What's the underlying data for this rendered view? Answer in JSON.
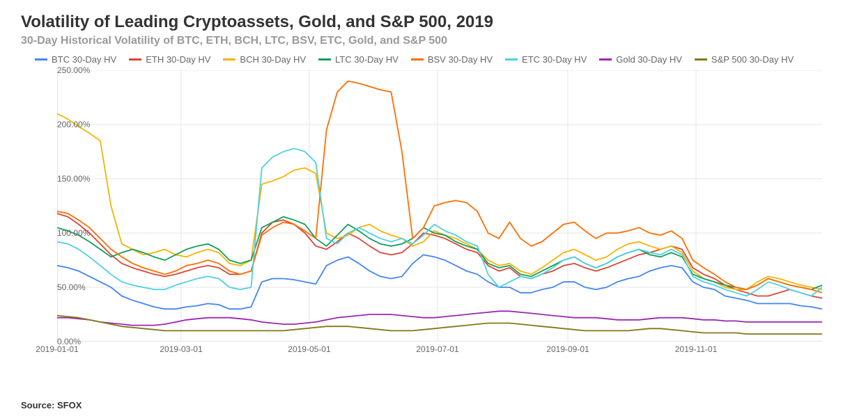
{
  "title": "Volatility of Leading Cryptoassets, Gold, and S&P 500, 2019",
  "subtitle": "30-Day Historical Volatility of BTC, ETH, BCH, LTC, BSV, ETC, Gold, and S&P 500",
  "source": "Source: SFOX",
  "chart": {
    "type": "line",
    "background_color": "#ffffff",
    "grid_color": "#e6e6e6",
    "axis_color": "#666666",
    "font_family": "Arial",
    "title_fontsize": 24,
    "subtitle_fontsize": 16,
    "label_fontsize": 12,
    "legend_fontsize": 13,
    "line_width": 1.8,
    "x_range": [
      "2019-01-01",
      "2019-12-31"
    ],
    "y_range": [
      0,
      250
    ],
    "y_tick_step": 50,
    "y_tick_format": "0.00%",
    "y_ticks": [
      "0.00%",
      "50.00%",
      "100.00%",
      "150.00%",
      "200.00%",
      "250.00%"
    ],
    "x_ticks": [
      "2019-01-01",
      "2019-03-01",
      "2019-05-01",
      "2019-07-01",
      "2019-09-01",
      "2019-11-01"
    ],
    "legend_position": "top",
    "series": [
      {
        "name": "BTC 30-Day HV",
        "color": "#4285f4",
        "values": [
          70,
          68,
          65,
          60,
          55,
          50,
          42,
          38,
          35,
          32,
          30,
          30,
          32,
          33,
          35,
          34,
          30,
          30,
          32,
          55,
          58,
          58,
          57,
          55,
          53,
          70,
          75,
          78,
          72,
          65,
          60,
          58,
          60,
          72,
          80,
          78,
          75,
          70,
          65,
          62,
          55,
          50,
          50,
          45,
          45,
          48,
          50,
          55,
          55,
          50,
          48,
          50,
          55,
          58,
          60,
          65,
          68,
          70,
          68,
          55,
          50,
          48,
          42,
          40,
          38,
          35,
          35,
          35,
          35,
          33,
          32,
          30
        ]
      },
      {
        "name": "ETH 30-Day HV",
        "color": "#db4437",
        "values": [
          118,
          115,
          108,
          100,
          90,
          80,
          72,
          68,
          65,
          62,
          60,
          62,
          65,
          68,
          70,
          68,
          62,
          62,
          65,
          100,
          110,
          112,
          108,
          100,
          88,
          85,
          92,
          100,
          95,
          88,
          82,
          80,
          82,
          90,
          100,
          98,
          95,
          90,
          85,
          82,
          70,
          65,
          68,
          60,
          58,
          62,
          65,
          70,
          72,
          68,
          65,
          68,
          72,
          76,
          80,
          82,
          85,
          88,
          85,
          68,
          62,
          58,
          52,
          48,
          45,
          42,
          42,
          45,
          48,
          45,
          42,
          40
        ]
      },
      {
        "name": "BCH 30-Day HV",
        "color": "#f4b400",
        "values": [
          210,
          205,
          198,
          192,
          185,
          125,
          90,
          85,
          80,
          82,
          85,
          80,
          78,
          82,
          85,
          82,
          72,
          70,
          75,
          145,
          148,
          152,
          158,
          160,
          155,
          100,
          95,
          98,
          105,
          108,
          102,
          98,
          95,
          88,
          92,
          102,
          98,
          95,
          90,
          85,
          75,
          70,
          72,
          65,
          62,
          68,
          75,
          82,
          85,
          80,
          75,
          78,
          85,
          90,
          92,
          88,
          85,
          88,
          82,
          65,
          58,
          55,
          50,
          48,
          48,
          55,
          60,
          58,
          55,
          52,
          50,
          48
        ]
      },
      {
        "name": "LTC 30-Day HV",
        "color": "#0f9d58",
        "values": [
          105,
          102,
          98,
          92,
          85,
          78,
          82,
          85,
          82,
          78,
          75,
          80,
          85,
          88,
          90,
          85,
          75,
          72,
          75,
          105,
          110,
          115,
          112,
          108,
          95,
          88,
          98,
          108,
          102,
          95,
          90,
          88,
          90,
          95,
          105,
          100,
          98,
          92,
          88,
          85,
          72,
          68,
          70,
          62,
          60,
          65,
          70,
          75,
          78,
          72,
          68,
          72,
          78,
          82,
          85,
          80,
          78,
          82,
          78,
          62,
          58,
          55,
          52,
          50,
          48,
          52,
          58,
          55,
          52,
          50,
          48,
          52
        ]
      },
      {
        "name": "BSV 30-Day HV",
        "color": "#ff6d00",
        "values": [
          120,
          118,
          112,
          105,
          95,
          85,
          78,
          72,
          68,
          65,
          62,
          65,
          70,
          72,
          75,
          72,
          65,
          62,
          65,
          98,
          105,
          110,
          108,
          102,
          95,
          195,
          230,
          240,
          238,
          235,
          232,
          230,
          175,
          95,
          105,
          125,
          128,
          130,
          128,
          120,
          100,
          95,
          110,
          95,
          88,
          92,
          100,
          108,
          110,
          102,
          95,
          100,
          100,
          102,
          105,
          100,
          98,
          102,
          95,
          75,
          68,
          62,
          55,
          50,
          48,
          52,
          58,
          55,
          52,
          50,
          48,
          45
        ]
      },
      {
        "name": "ETC 30-Day HV",
        "color": "#4dd0e1",
        "values": [
          92,
          90,
          85,
          78,
          70,
          62,
          55,
          52,
          50,
          48,
          48,
          52,
          55,
          58,
          60,
          58,
          50,
          48,
          50,
          160,
          170,
          175,
          178,
          175,
          165,
          95,
          90,
          100,
          105,
          100,
          95,
          92,
          95,
          90,
          98,
          108,
          102,
          98,
          92,
          88,
          62,
          50,
          55,
          60,
          58,
          62,
          68,
          75,
          78,
          72,
          68,
          72,
          78,
          82,
          85,
          82,
          80,
          85,
          80,
          60,
          55,
          52,
          48,
          45,
          42,
          48,
          55,
          52,
          48,
          45,
          42,
          50
        ]
      },
      {
        "name": "Gold 30-Day HV",
        "color": "#9c27b0",
        "values": [
          22,
          22,
          21,
          20,
          18,
          17,
          16,
          15,
          15,
          15,
          16,
          18,
          20,
          21,
          22,
          22,
          22,
          21,
          20,
          18,
          17,
          16,
          16,
          17,
          18,
          20,
          22,
          23,
          24,
          25,
          25,
          25,
          24,
          23,
          22,
          22,
          23,
          24,
          25,
          26,
          27,
          28,
          28,
          27,
          26,
          25,
          24,
          23,
          22,
          22,
          22,
          21,
          20,
          20,
          20,
          21,
          22,
          22,
          22,
          21,
          20,
          20,
          19,
          19,
          18,
          18,
          18,
          18,
          18,
          18,
          18,
          18
        ]
      },
      {
        "name": "S&P 500 30-Day HV",
        "color": "#827717",
        "values": [
          24,
          23,
          22,
          20,
          18,
          16,
          14,
          13,
          12,
          11,
          10,
          10,
          10,
          10,
          10,
          10,
          10,
          10,
          10,
          10,
          10,
          10,
          11,
          12,
          13,
          14,
          14,
          14,
          13,
          12,
          11,
          10,
          10,
          10,
          11,
          12,
          13,
          14,
          15,
          16,
          17,
          17,
          17,
          16,
          15,
          14,
          13,
          12,
          11,
          10,
          10,
          10,
          10,
          10,
          11,
          12,
          12,
          11,
          10,
          9,
          8,
          8,
          8,
          8,
          7,
          7,
          7,
          7,
          7,
          7,
          7,
          7
        ]
      }
    ]
  }
}
